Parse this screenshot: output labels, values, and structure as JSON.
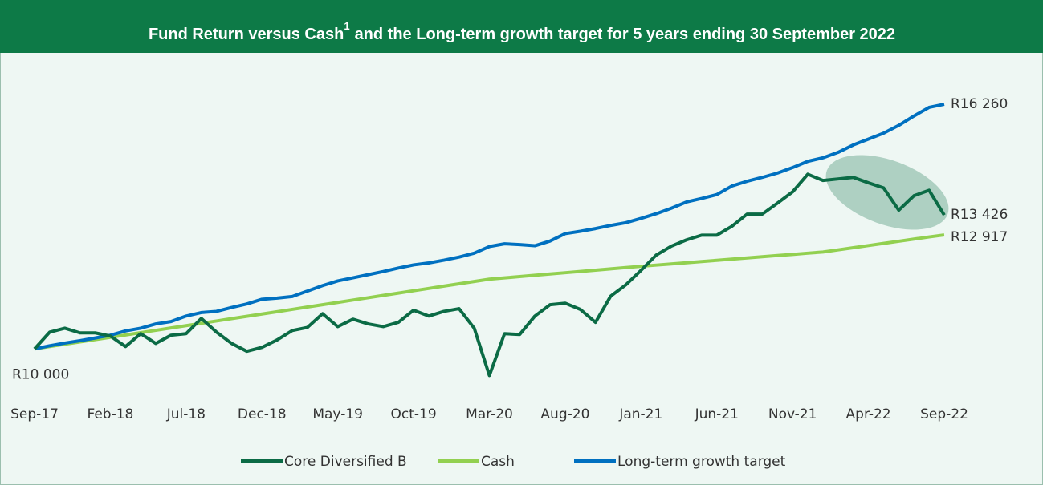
{
  "chart_data": {
    "type": "line",
    "title": [
      "Fund Return versus Cash",
      "1",
      "and the Long-term growth target for 5 years ending 30 September 2022"
    ],
    "categories": [
      "Sep-17",
      null,
      null,
      null,
      null,
      "Feb-18",
      null,
      null,
      null,
      null,
      "Jul-18",
      null,
      null,
      null,
      null,
      "Dec-18",
      null,
      null,
      null,
      null,
      "May-19",
      null,
      null,
      null,
      null,
      "Oct-19",
      null,
      null,
      null,
      null,
      "Mar-20",
      null,
      null,
      null,
      null,
      "Aug-20",
      null,
      null,
      null,
      null,
      "Jan-21",
      null,
      null,
      null,
      null,
      "Jun-21",
      null,
      null,
      null,
      null,
      "Nov-21",
      null,
      null,
      null,
      null,
      "Apr-22",
      null,
      null,
      null,
      null,
      "Sep-22"
    ],
    "ylim": [
      9000,
      17000
    ],
    "series": [
      {
        "name": "Core Diversified B",
        "color": "#0b6b45",
        "values": [
          10000,
          10430,
          10530,
          10410,
          10410,
          10330,
          10060,
          10390,
          10140,
          10350,
          10390,
          10780,
          10430,
          10140,
          9940,
          10040,
          10230,
          10470,
          10550,
          10900,
          10570,
          10760,
          10640,
          10570,
          10680,
          10990,
          10840,
          10960,
          11030,
          10530,
          9320,
          10390,
          10370,
          10840,
          11130,
          11170,
          11010,
          10680,
          11350,
          11640,
          12010,
          12400,
          12630,
          12790,
          12910,
          12910,
          13140,
          13450,
          13450,
          13730,
          14020,
          14470,
          14310,
          14350,
          14390,
          14250,
          14120,
          13550,
          13920,
          14060,
          13426
        ],
        "value_labels": [
          "R10 000",
          null,
          null,
          null,
          null,
          null,
          null,
          null,
          null,
          null,
          null,
          null,
          null,
          null,
          null,
          null,
          null,
          null,
          null,
          null,
          null,
          null,
          null,
          null,
          null,
          null,
          null,
          null,
          null,
          null,
          null,
          null,
          null,
          null,
          null,
          null,
          null,
          null,
          null,
          null,
          null,
          null,
          null,
          null,
          null,
          null,
          null,
          null,
          null,
          null,
          null,
          null,
          null,
          null,
          null,
          null,
          null,
          null,
          null,
          null,
          "R13 426"
        ]
      },
      {
        "name": "Cash",
        "color": "#92d050",
        "values": [
          10000,
          10060,
          10119,
          10179,
          10238,
          10298,
          10357,
          10417,
          10476,
          10536,
          10595,
          10655,
          10714,
          10774,
          10833,
          10893,
          10952,
          11012,
          11071,
          11131,
          11190,
          11250,
          11309,
          11369,
          11428,
          11488,
          11547,
          11607,
          11666,
          11726,
          11785,
          11818,
          11851,
          11884,
          11917,
          11950,
          11983,
          12016,
          12049,
          12082,
          12114,
          12145,
          12175,
          12206,
          12236,
          12267,
          12297,
          12328,
          12358,
          12389,
          12419,
          12450,
          12480,
          12535,
          12590,
          12645,
          12700,
          12755,
          12810,
          12865,
          12917
        ],
        "value_labels": [
          null,
          null,
          null,
          null,
          null,
          null,
          null,
          null,
          null,
          null,
          null,
          null,
          null,
          null,
          null,
          null,
          null,
          null,
          null,
          null,
          null,
          null,
          null,
          null,
          null,
          null,
          null,
          null,
          null,
          null,
          null,
          null,
          null,
          null,
          null,
          null,
          null,
          null,
          null,
          null,
          null,
          null,
          null,
          null,
          null,
          null,
          null,
          null,
          null,
          null,
          null,
          null,
          null,
          null,
          null,
          null,
          null,
          null,
          null,
          null,
          "R12 917"
        ]
      },
      {
        "name": "Long-term growth target",
        "color": "#0070c0",
        "values": [
          10000,
          10080,
          10150,
          10210,
          10280,
          10350,
          10460,
          10530,
          10640,
          10700,
          10840,
          10930,
          10960,
          11060,
          11150,
          11270,
          11300,
          11340,
          11480,
          11620,
          11740,
          11820,
          11900,
          11980,
          12070,
          12150,
          12200,
          12270,
          12350,
          12450,
          12620,
          12690,
          12670,
          12640,
          12760,
          12950,
          13010,
          13080,
          13160,
          13230,
          13340,
          13460,
          13600,
          13760,
          13850,
          13950,
          14170,
          14290,
          14390,
          14500,
          14640,
          14800,
          14890,
          15030,
          15220,
          15370,
          15520,
          15720,
          15960,
          16180,
          16260
        ],
        "value_labels": [
          null,
          null,
          null,
          null,
          null,
          null,
          null,
          null,
          null,
          null,
          null,
          null,
          null,
          null,
          null,
          null,
          null,
          null,
          null,
          null,
          null,
          null,
          null,
          null,
          null,
          null,
          null,
          null,
          null,
          null,
          null,
          null,
          null,
          null,
          null,
          null,
          null,
          null,
          null,
          null,
          null,
          null,
          null,
          null,
          null,
          null,
          null,
          null,
          null,
          null,
          null,
          null,
          null,
          null,
          null,
          null,
          null,
          null,
          null,
          null,
          "R16 260"
        ]
      }
    ],
    "legend": "bottom"
  }
}
